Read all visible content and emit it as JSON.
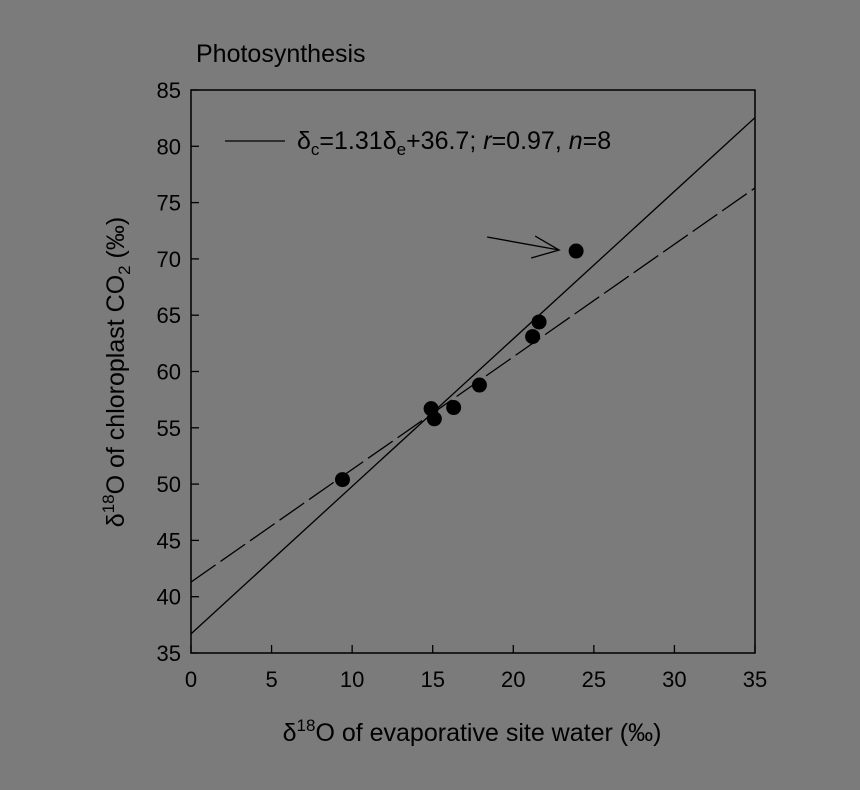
{
  "chart_data": {
    "type": "scatter",
    "title": "Photosynthesis",
    "xlabel": {
      "prefix": "δ",
      "sup": "18",
      "rest": "O of evaporative site water (‰)"
    },
    "ylabel": {
      "prefix": "δ",
      "sup": "18",
      "mid": "O of chloroplast CO",
      "sub": "2",
      "rest": " (‰)"
    },
    "xlim": [
      0,
      35
    ],
    "ylim": [
      35,
      85
    ],
    "xticks": [
      0,
      5,
      10,
      15,
      20,
      25,
      30,
      35
    ],
    "yticks": [
      35,
      40,
      45,
      50,
      55,
      60,
      65,
      70,
      75,
      80,
      85
    ],
    "points": [
      {
        "x": 9.4,
        "y": 50.4
      },
      {
        "x": 14.9,
        "y": 56.7
      },
      {
        "x": 15.1,
        "y": 55.8
      },
      {
        "x": 16.3,
        "y": 56.8
      },
      {
        "x": 17.9,
        "y": 58.8
      },
      {
        "x": 21.2,
        "y": 63.1
      },
      {
        "x": 21.6,
        "y": 64.4
      },
      {
        "x": 23.9,
        "y": 70.7
      }
    ],
    "lines": [
      {
        "style": "solid",
        "slope": 1.31,
        "intercept": 36.7
      },
      {
        "style": "dashed",
        "slope": 1.0,
        "intercept": 41.3
      }
    ],
    "legend": {
      "placement": "top-left",
      "d1": "δ",
      "s1": "c",
      "mid": "=1.31",
      "d2": "δ",
      "s2": "e",
      "eq": "+36.7; ",
      "r": "r",
      "rval": "=0.97, ",
      "n": "n",
      "nval": "=8"
    },
    "annotation": {
      "type": "arrow",
      "target": {
        "x": 23.9,
        "y": 70.7
      }
    },
    "grid": false
  }
}
